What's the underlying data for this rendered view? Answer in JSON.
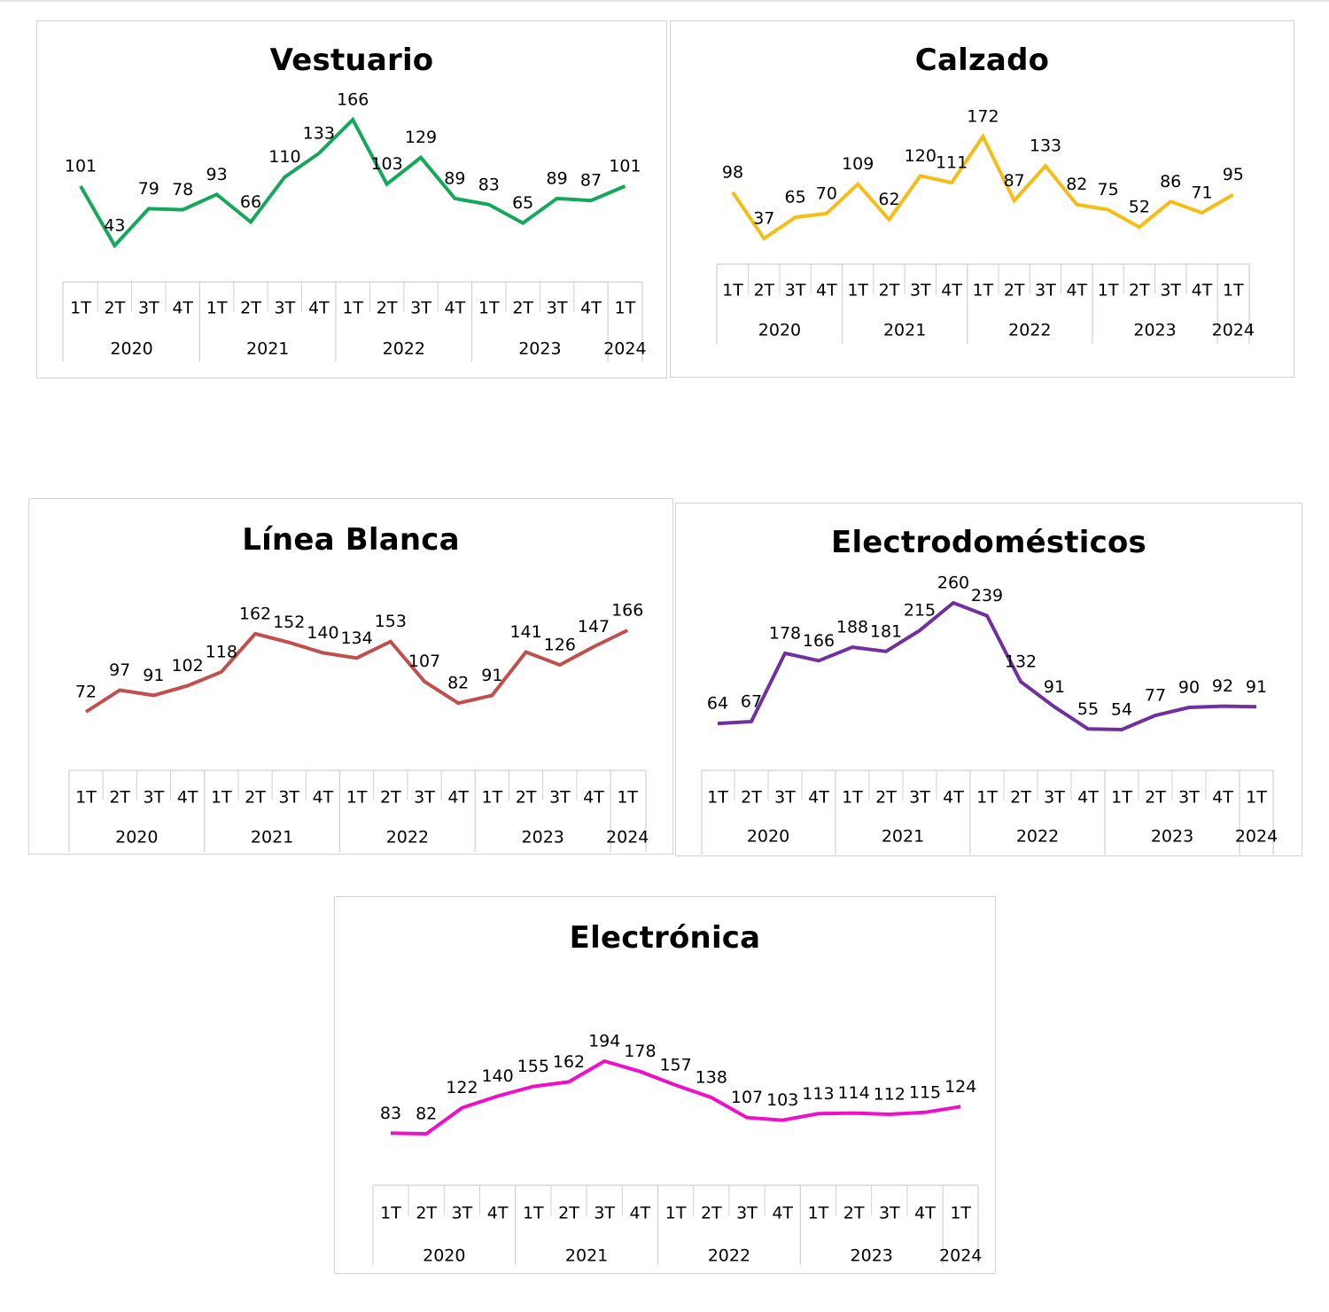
{
  "chart_data": [
    {
      "type": "line",
      "title": "Vestuario",
      "quarters": [
        "1T",
        "2T",
        "3T",
        "4T",
        "1T",
        "2T",
        "3T",
        "4T",
        "1T",
        "2T",
        "3T",
        "4T",
        "1T",
        "2T",
        "3T",
        "4T",
        "1T"
      ],
      "years": [
        "2020",
        "2021",
        "2022",
        "2023",
        "2024"
      ],
      "values": [
        101,
        43,
        79,
        78,
        93,
        66,
        110,
        133,
        166,
        103,
        129,
        89,
        83,
        65,
        89,
        87,
        101
      ],
      "color": "#16a85a",
      "ylim": [
        0,
        270
      ]
    },
    {
      "type": "line",
      "title": "Calzado",
      "quarters": [
        "1T",
        "2T",
        "3T",
        "4T",
        "1T",
        "2T",
        "3T",
        "4T",
        "1T",
        "2T",
        "3T",
        "4T",
        "1T",
        "2T",
        "3T",
        "4T",
        "1T"
      ],
      "years": [
        "2020",
        "2021",
        "2022",
        "2023",
        "2024"
      ],
      "values": [
        98,
        37,
        65,
        70,
        109,
        62,
        120,
        111,
        172,
        87,
        133,
        82,
        75,
        52,
        86,
        71,
        95
      ],
      "color": "#f5bd17",
      "ylim": [
        0,
        240
      ]
    },
    {
      "type": "line",
      "title": "Línea Blanca",
      "quarters": [
        "1T",
        "2T",
        "3T",
        "4T",
        "1T",
        "2T",
        "3T",
        "4T",
        "1T",
        "2T",
        "3T",
        "4T",
        "1T",
        "2T",
        "3T",
        "4T",
        "1T"
      ],
      "years": [
        "2020",
        "2021",
        "2022",
        "2023",
        "2024"
      ],
      "values": [
        72,
        97,
        91,
        102,
        118,
        162,
        152,
        140,
        134,
        153,
        107,
        82,
        91,
        141,
        126,
        147,
        166
      ],
      "color": "#c0504d",
      "ylim": [
        0,
        260
      ]
    },
    {
      "type": "line",
      "title": "Electrodomésticos",
      "quarters": [
        "1T",
        "2T",
        "3T",
        "4T",
        "1T",
        "2T",
        "3T",
        "4T",
        "1T",
        "2T",
        "3T",
        "4T",
        "1T",
        "2T",
        "3T",
        "4T",
        "1T"
      ],
      "years": [
        "2020",
        "2021",
        "2022",
        "2023",
        "2024"
      ],
      "values": [
        64,
        67,
        178,
        166,
        188,
        181,
        215,
        260,
        239,
        132,
        91,
        55,
        54,
        77,
        90,
        92,
        91
      ],
      "color": "#7030a0",
      "ylim": [
        0,
        330
      ]
    },
    {
      "type": "line",
      "title": "Electrónica",
      "quarters": [
        "1T",
        "2T",
        "3T",
        "4T",
        "1T",
        "2T",
        "3T",
        "4T",
        "1T",
        "2T",
        "3T",
        "4T",
        "1T",
        "2T",
        "3T",
        "4T",
        "1T"
      ],
      "years": [
        "2020",
        "2021",
        "2022",
        "2023",
        "2024"
      ],
      "values": [
        83,
        82,
        122,
        140,
        155,
        162,
        194,
        178,
        157,
        138,
        107,
        103,
        113,
        114,
        112,
        115,
        124
      ],
      "color": "#ee10c8",
      "ylim": [
        0,
        280
      ]
    }
  ]
}
